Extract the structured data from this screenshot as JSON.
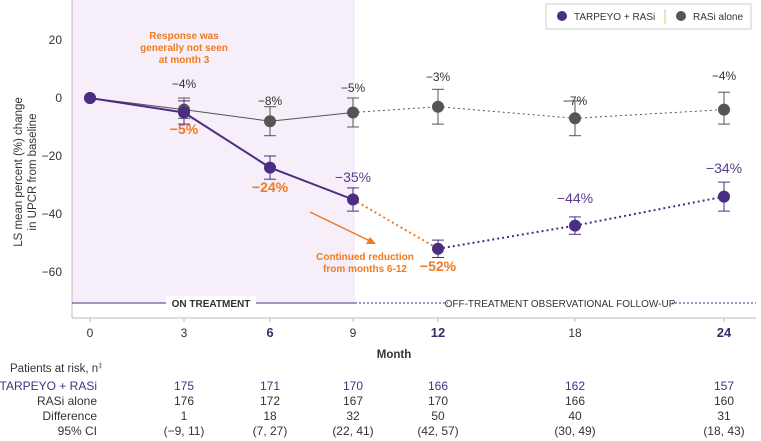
{
  "chart_data": {
    "type": "line",
    "y_axis": {
      "label_line1": "LS mean percent (%) change",
      "label_line2": "in UPCR from baseline",
      "ylim": [
        -72,
        26
      ],
      "ticks": [
        "20",
        "0",
        "−20",
        "−40",
        "−60"
      ],
      "tick_values": [
        20,
        0,
        -20,
        -40,
        -60
      ]
    },
    "x_axis": {
      "label": "Month",
      "ticks": [
        "0",
        "3",
        "6",
        "9",
        "12",
        "18",
        "24"
      ],
      "tick_values": [
        0,
        3,
        6,
        9,
        12,
        18,
        24
      ],
      "bold_ticks": [
        6,
        12,
        24
      ]
    },
    "legend": {
      "position": "top-right",
      "items": [
        "TARPEYO + RASi",
        "RASi alone"
      ]
    },
    "series": [
      {
        "name": "TARPEYO + RASi",
        "color": "#4b2e83",
        "points": [
          {
            "x": 0,
            "y": 0,
            "lo": 0,
            "hi": 0,
            "label": ""
          },
          {
            "x": 3,
            "y": -5,
            "lo": -9,
            "hi": -1,
            "label": "−5%"
          },
          {
            "x": 6,
            "y": -24,
            "lo": -28,
            "hi": -20,
            "label": "−24%"
          },
          {
            "x": 9,
            "y": -35,
            "lo": -39,
            "hi": -31,
            "label": "−35%"
          },
          {
            "x": 12,
            "y": -52,
            "lo": -55,
            "hi": -49,
            "label": "−52%"
          },
          {
            "x": 18,
            "y": -44,
            "lo": -47,
            "hi": -41,
            "label": "−44%"
          },
          {
            "x": 24,
            "y": -34,
            "lo": -39,
            "hi": -29,
            "label": "−34%"
          }
        ]
      },
      {
        "name": "RASi alone",
        "color": "#555555",
        "points": [
          {
            "x": 0,
            "y": 0,
            "lo": 0,
            "hi": 0,
            "label": ""
          },
          {
            "x": 3,
            "y": -4,
            "lo": -7,
            "hi": 0,
            "label": "−4%"
          },
          {
            "x": 6,
            "y": -8,
            "lo": -13,
            "hi": -3,
            "label": "−8%"
          },
          {
            "x": 9,
            "y": -5,
            "lo": -10,
            "hi": 0,
            "label": "−5%"
          },
          {
            "x": 12,
            "y": -3,
            "lo": -9,
            "hi": 3,
            "label": "−3%"
          },
          {
            "x": 18,
            "y": -7,
            "lo": -13,
            "hi": -1,
            "label": "−7%"
          },
          {
            "x": 24,
            "y": -4,
            "lo": -9,
            "hi": 2,
            "label": "−4%"
          }
        ]
      }
    ],
    "annotations": {
      "response_line1": "Response was",
      "response_line2": "generally not seen",
      "response_line3": "at month 3",
      "continued_line1": "Continued reduction",
      "continued_line2": "from months 6-12"
    },
    "phases": {
      "on_treatment": "ON TREATMENT",
      "off_treatment": "OFF-TREATMENT OBSERVATIONAL FOLLOW-UP"
    },
    "risk_table": {
      "header": "Patients at risk, n",
      "header_sup": "‡",
      "rows": [
        {
          "label": "TARPEYO + RASi",
          "values": [
            "175",
            "171",
            "170",
            "166",
            "162",
            "157"
          ]
        },
        {
          "label": "RASi alone",
          "values": [
            "176",
            "172",
            "167",
            "170",
            "166",
            "160"
          ]
        },
        {
          "label": "Difference",
          "values": [
            "1",
            "18",
            "32",
            "50",
            "40",
            "31"
          ]
        },
        {
          "label": "95% CI",
          "values": [
            "(−9, 11)",
            "(7, 27)",
            "(22, 41)",
            "(42, 57)",
            "(30, 49)",
            "(18, 43)"
          ]
        }
      ]
    },
    "colors": {
      "tarpeyo": "#4b2e83",
      "rasi": "#555555",
      "orange": "#f07a1e",
      "on_treatment_shade": "#f5eef8"
    }
  }
}
